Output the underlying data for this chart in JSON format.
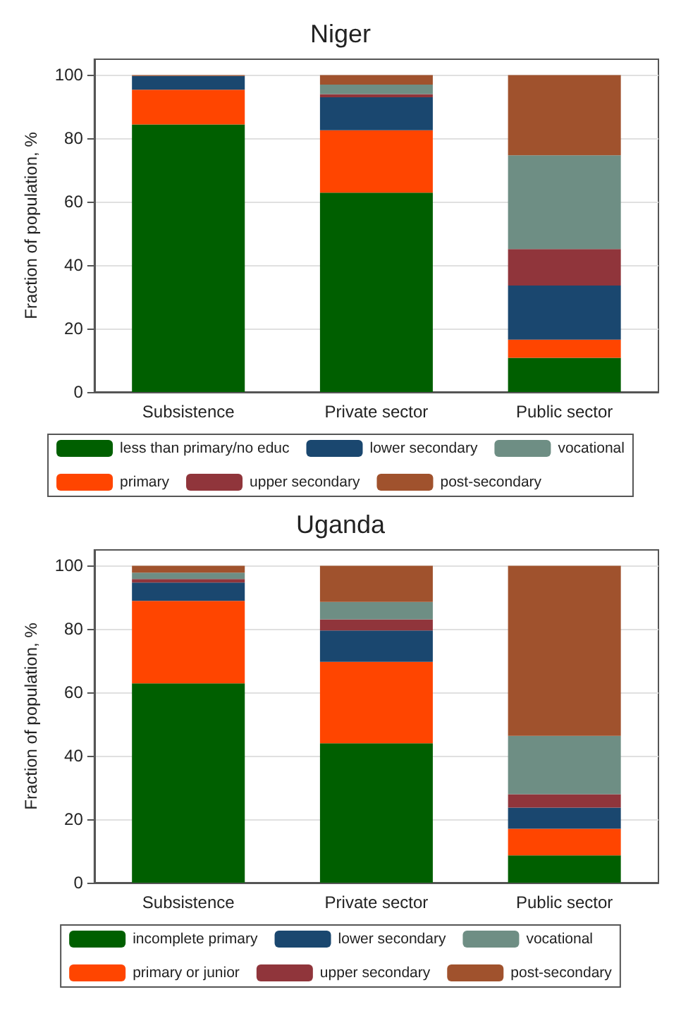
{
  "chart_data": [
    {
      "type": "bar",
      "title": "Niger",
      "ylabel": "Fraction of population, %",
      "categories": [
        "Subsistence",
        "Private sector",
        "Public sector"
      ],
      "stacked": true,
      "ylim": [
        0,
        105
      ],
      "yticks": [
        0,
        20,
        40,
        60,
        80,
        100
      ],
      "grid": "y",
      "legend": "bottom",
      "series": [
        {
          "name": "less than primary/no educ",
          "color": "#005f00",
          "values": [
            84.4,
            62.9,
            10.8
          ]
        },
        {
          "name": "primary",
          "color": "#ff4500",
          "values": [
            11,
            19.7,
            5.7
          ]
        },
        {
          "name": "lower secondary",
          "color": "#1a476f",
          "values": [
            4.3,
            10.4,
            17.1
          ]
        },
        {
          "name": "upper secondary",
          "color": "#90353b",
          "values": [
            0,
            1,
            11.5
          ]
        },
        {
          "name": "vocational",
          "color": "#6e8e84",
          "values": [
            0,
            3,
            29.6
          ]
        },
        {
          "name": "post-secondary",
          "color": "#a0522d",
          "values": [
            0.3,
            3,
            25.3
          ]
        }
      ]
    },
    {
      "type": "bar",
      "title": "Uganda",
      "ylabel": "Fraction of population, %",
      "categories": [
        "Subsistence",
        "Private sector",
        "Public sector"
      ],
      "stacked": true,
      "ylim": [
        0,
        105
      ],
      "yticks": [
        0,
        20,
        40,
        60,
        80,
        100
      ],
      "grid": "y",
      "legend": "bottom",
      "series": [
        {
          "name": "incomplete primary",
          "color": "#005f00",
          "values": [
            62.9,
            44,
            8.6
          ]
        },
        {
          "name": "primary or junior",
          "color": "#ff4500",
          "values": [
            26,
            25.7,
            8.4
          ]
        },
        {
          "name": "lower secondary",
          "color": "#1a476f",
          "values": [
            5.8,
            9.9,
            6.7
          ]
        },
        {
          "name": "upper secondary",
          "color": "#90353b",
          "values": [
            1.1,
            3.5,
            4.2
          ]
        },
        {
          "name": "vocational",
          "color": "#6e8e84",
          "values": [
            2,
            5.5,
            18.4
          ]
        },
        {
          "name": "post-secondary",
          "color": "#a0522d",
          "values": [
            2.2,
            11.4,
            53.7
          ]
        }
      ]
    }
  ]
}
